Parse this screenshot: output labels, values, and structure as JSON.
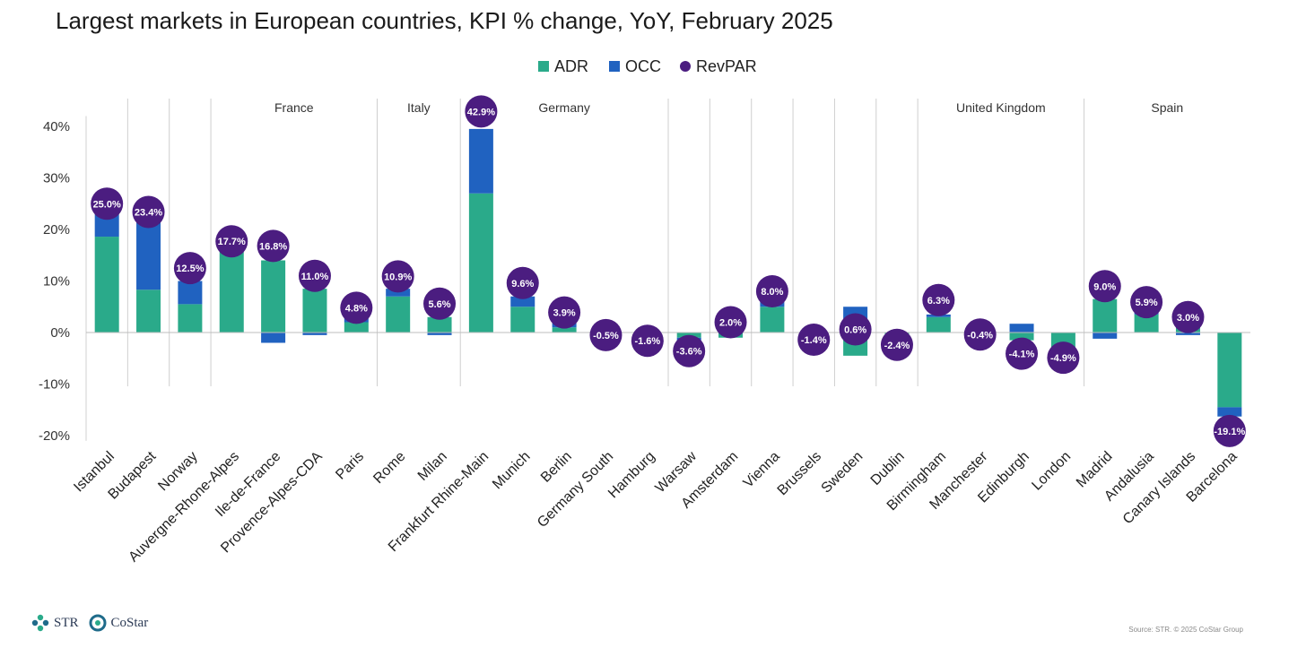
{
  "chart_data": {
    "type": "bar",
    "title": "Largest markets in European countries, KPI % change, YoY, February 2025",
    "legend": [
      {
        "name": "ADR",
        "color": "#2aaa8a",
        "shape": "square"
      },
      {
        "name": "OCC",
        "color": "#2062c0",
        "shape": "square"
      },
      {
        "name": "RevPAR",
        "color": "#4b1d80",
        "shape": "circle"
      }
    ],
    "ylim": [
      -20,
      45
    ],
    "yticks": [
      -20,
      -10,
      0,
      10,
      20,
      30,
      40
    ],
    "ytick_labels": [
      "-20%",
      "-10%",
      "0%",
      "10%",
      "20%",
      "30%",
      "40%"
    ],
    "categories": [
      "Istanbul",
      "Budapest",
      "Norway",
      "Auvergne-Rhone-Alpes",
      "Ile-de-France",
      "Provence-Alpes-CDA",
      "Paris",
      "Rome",
      "Milan",
      "Frankfurt Rhine-Main",
      "Munich",
      "Berlin",
      "Germany South",
      "Hamburg",
      "Warsaw",
      "Amsterdam",
      "Vienna",
      "Brussels",
      "Sweden",
      "Dublin",
      "Birmingham",
      "Manchester",
      "Edinburgh",
      "London",
      "Madrid",
      "Andalusia",
      "Canary Islands",
      "Barcelona"
    ],
    "series": [
      {
        "name": "ADR",
        "values": [
          18.6,
          8.3,
          5.5,
          16.0,
          14.0,
          8.5,
          2.0,
          7.0,
          3.0,
          27.0,
          5.0,
          1.0,
          -0.5,
          -1.0,
          -1.0,
          -1.0,
          5.0,
          -1.0,
          -4.5,
          -1.5,
          3.0,
          -0.2,
          -1.5,
          -4.5,
          6.5,
          3.5,
          3.0,
          -14.5
        ]
      },
      {
        "name": "OCC",
        "values": [
          4.5,
          13.5,
          4.5,
          1.5,
          -2.0,
          -0.5,
          2.5,
          1.5,
          -0.5,
          12.5,
          2.0,
          1.2,
          0.0,
          -0.6,
          -1.0,
          0.5,
          2.0,
          0.0,
          5.0,
          -1.0,
          0.5,
          0.0,
          1.7,
          -0.5,
          -1.2,
          0.6,
          -0.5,
          -1.8
        ]
      },
      {
        "name": "RevPAR",
        "values": [
          25.0,
          23.4,
          12.5,
          17.7,
          16.8,
          11.0,
          4.8,
          10.9,
          5.6,
          42.9,
          9.6,
          3.9,
          -0.5,
          -1.6,
          -3.6,
          2.0,
          8.0,
          -1.4,
          0.6,
          -2.4,
          6.3,
          -0.4,
          -4.1,
          -4.9,
          9.0,
          5.9,
          3.0,
          -19.1
        ]
      }
    ],
    "revpar_labels": [
      "25.0%",
      "23.4%",
      "12.5%",
      "17.7%",
      "16.8%",
      "11.0%",
      "4.8%",
      "10.9%",
      "5.6%",
      "42.9%",
      "9.6%",
      "3.9%",
      "-0.5%",
      "-1.6%",
      "-3.6%",
      "2.0%",
      "8.0%",
      "-1.4%",
      "0.6%",
      "-2.4%",
      "6.3%",
      "-0.4%",
      "-4.1%",
      "-4.9%",
      "9.0%",
      "5.9%",
      "3.0%",
      "-19.1%"
    ],
    "groups": [
      {
        "label": "",
        "start": 0,
        "end": 0
      },
      {
        "label": "",
        "start": 1,
        "end": 1
      },
      {
        "label": "",
        "start": 2,
        "end": 2
      },
      {
        "label": "France",
        "start": 3,
        "end": 6
      },
      {
        "label": "Italy",
        "start": 7,
        "end": 8
      },
      {
        "label": "Germany",
        "start": 9,
        "end": 13
      },
      {
        "label": "",
        "start": 14,
        "end": 14
      },
      {
        "label": "",
        "start": 15,
        "end": 15
      },
      {
        "label": "",
        "start": 16,
        "end": 16
      },
      {
        "label": "",
        "start": 17,
        "end": 17
      },
      {
        "label": "",
        "start": 18,
        "end": 18
      },
      {
        "label": "",
        "start": 19,
        "end": 19
      },
      {
        "label": "United Kingdom",
        "start": 20,
        "end": 23
      },
      {
        "label": "Spain",
        "start": 24,
        "end": 27
      }
    ]
  },
  "footer": {
    "logo_str": "STR",
    "logo_costar": "CoStar",
    "source": "Source: STR. © 2025 CoStar Group"
  }
}
